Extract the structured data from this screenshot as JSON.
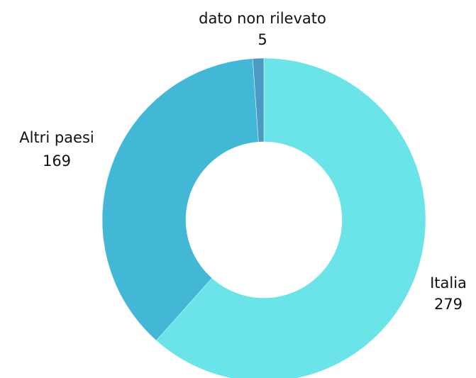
{
  "chart_data": {
    "type": "donut",
    "categories": [
      "Italia",
      "Altri paesi",
      "dato non rilevato"
    ],
    "values": [
      279,
      169,
      5
    ],
    "colors": [
      "#6ae4e8",
      "#42b8d6",
      "#4a9ac4"
    ]
  }
}
